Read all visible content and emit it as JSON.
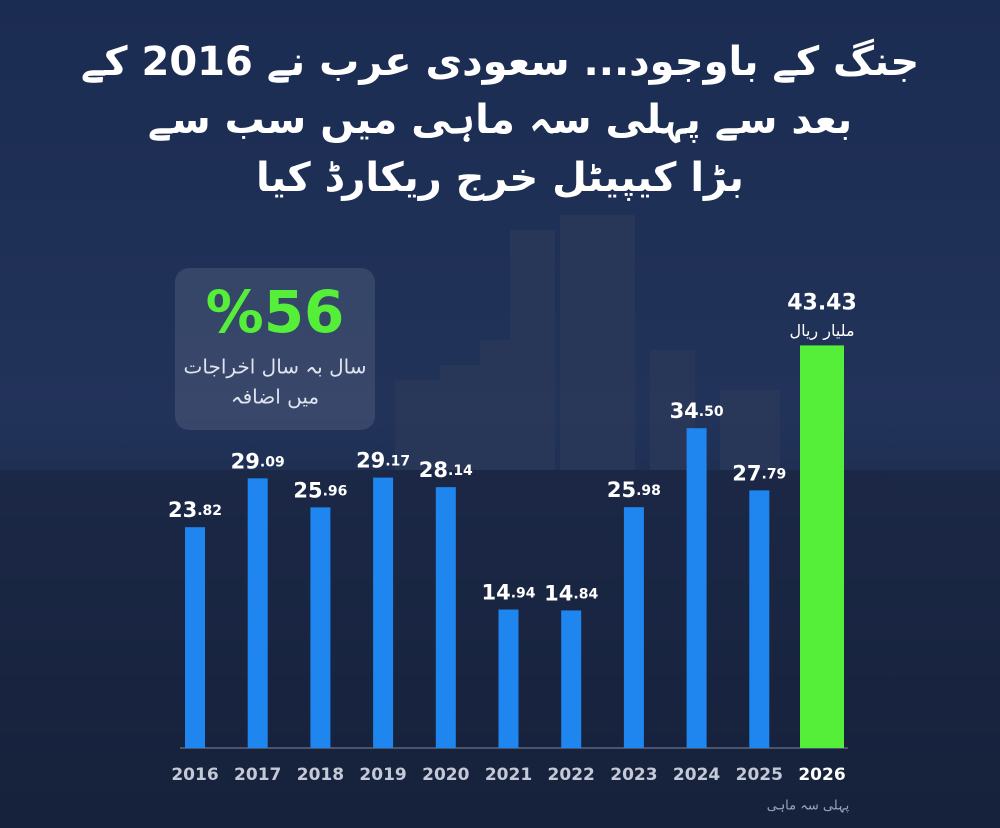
{
  "chart_data": {
    "type": "bar",
    "title_lines": [
      "جنگ کے باوجود... سعودی عرب نے 2016 کے",
      "بعد سے پہلی سہ ماہی میں سب سے",
      "بڑا کیپیٹل خرج ریکارڈ کیا"
    ],
    "annotation": {
      "value": "%56",
      "lines": [
        "سال بہ سال اخراجات",
        "میں اضافہ"
      ]
    },
    "unit_label": "ملیار ریال",
    "footnote": "پہلی سہ ماہی",
    "categories": [
      "2016",
      "2017",
      "2018",
      "2019",
      "2020",
      "2021",
      "2022",
      "2023",
      "2024",
      "2025",
      "2026"
    ],
    "values": [
      23.82,
      29.09,
      25.96,
      29.17,
      28.14,
      14.94,
      14.84,
      25.98,
      34.5,
      27.79,
      43.43
    ],
    "value_labels": [
      "23.82",
      "29.09",
      "25.96",
      "29.17",
      "28.14",
      "14.94",
      "14.84",
      "25.98",
      "34.50",
      "27.79",
      "43.43"
    ],
    "colors": [
      "#1e86ee",
      "#1e86ee",
      "#1e86ee",
      "#1e86ee",
      "#1e86ee",
      "#1e86ee",
      "#1e86ee",
      "#1e86ee",
      "#1e86ee",
      "#1e86ee",
      "#55ee38"
    ],
    "ylim": [
      0,
      45
    ]
  }
}
